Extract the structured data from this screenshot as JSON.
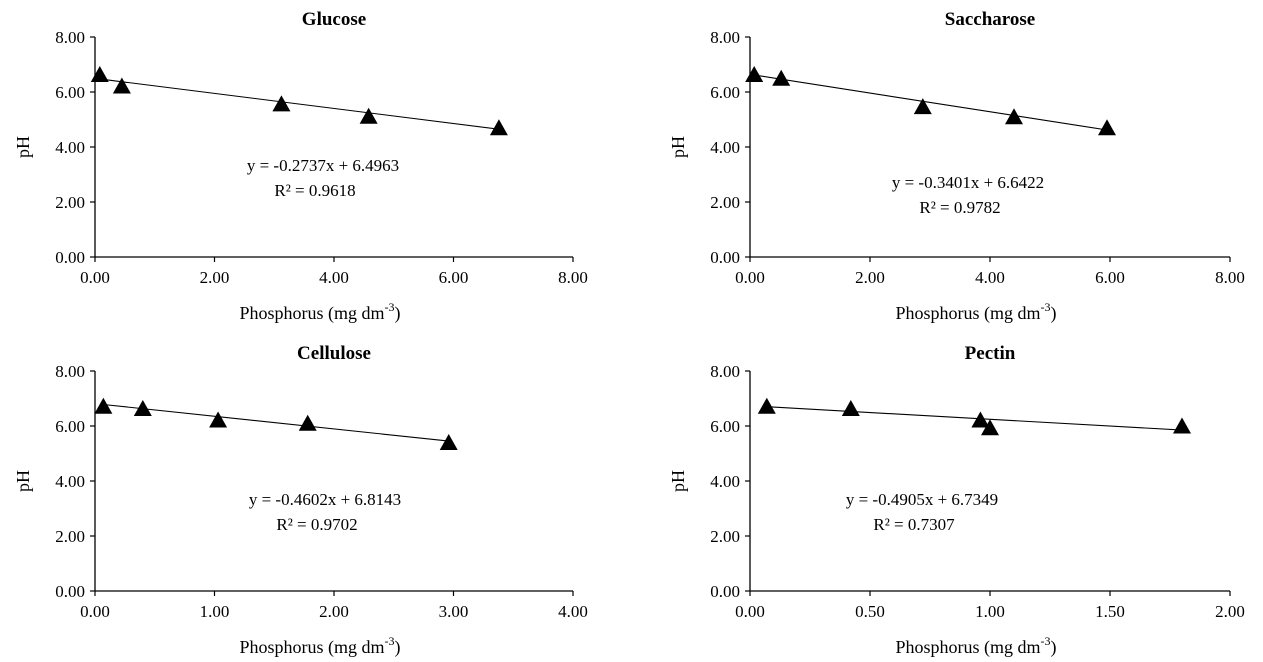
{
  "chart_data": [
    {
      "type": "scatter",
      "title": "Glucose",
      "xlabel": "Phosphorus (mg dm",
      "xlabel_sup": "-3",
      "xlabel_end": ")",
      "ylabel": "pH",
      "xlim": [
        0,
        8
      ],
      "ylim": [
        0,
        8
      ],
      "xticks": [
        "0.00",
        "2.00",
        "4.00",
        "6.00",
        "8.00"
      ],
      "yticks": [
        "0.00",
        "2.00",
        "4.00",
        "6.00",
        "8.00"
      ],
      "grid": false,
      "marker": "triangle",
      "color": "#000000",
      "points": [
        {
          "x": 0.08,
          "y": 6.62
        },
        {
          "x": 0.45,
          "y": 6.2
        },
        {
          "x": 3.12,
          "y": 5.55
        },
        {
          "x": 4.58,
          "y": 5.1
        },
        {
          "x": 6.76,
          "y": 4.68
        }
      ],
      "trendline": {
        "slope": -0.2737,
        "intercept": 6.4963
      },
      "equation": "y = -0.2737x + 6.4963",
      "r2": "R² = 0.9618"
    },
    {
      "type": "scatter",
      "title": "Saccharose",
      "xlabel": "Phosphorus (mg dm",
      "xlabel_sup": "-3",
      "xlabel_end": ")",
      "ylabel": "pH",
      "xlim": [
        0,
        8
      ],
      "ylim": [
        0,
        8
      ],
      "xticks": [
        "0.00",
        "2.00",
        "4.00",
        "6.00",
        "8.00"
      ],
      "yticks": [
        "0.00",
        "2.00",
        "4.00",
        "6.00",
        "8.00"
      ],
      "grid": false,
      "marker": "triangle",
      "color": "#000000",
      "points": [
        {
          "x": 0.07,
          "y": 6.62
        },
        {
          "x": 0.52,
          "y": 6.48
        },
        {
          "x": 2.88,
          "y": 5.45
        },
        {
          "x": 4.4,
          "y": 5.08
        },
        {
          "x": 5.95,
          "y": 4.68
        }
      ],
      "trendline": {
        "slope": -0.3401,
        "intercept": 6.6422
      },
      "equation": "y = -0.3401x + 6.6422",
      "r2": "R² = 0.9782"
    },
    {
      "type": "scatter",
      "title": "Cellulose",
      "xlabel": "Phosphorus (mg dm",
      "xlabel_sup": "-3",
      "xlabel_end": ")",
      "ylabel": "pH",
      "xlim": [
        0,
        4
      ],
      "ylim": [
        0,
        8
      ],
      "xticks": [
        "0.00",
        "1.00",
        "2.00",
        "3.00",
        "4.00"
      ],
      "yticks": [
        "0.00",
        "2.00",
        "4.00",
        "6.00",
        "8.00"
      ],
      "grid": false,
      "marker": "triangle",
      "color": "#000000",
      "points": [
        {
          "x": 0.07,
          "y": 6.7
        },
        {
          "x": 0.4,
          "y": 6.62
        },
        {
          "x": 1.03,
          "y": 6.2
        },
        {
          "x": 1.78,
          "y": 6.08
        },
        {
          "x": 2.96,
          "y": 5.38
        }
      ],
      "trendline": {
        "slope": -0.4602,
        "intercept": 6.8143
      },
      "equation": "y = -0.4602x + 6.8143",
      "r2": "R² = 0.9702"
    },
    {
      "type": "scatter",
      "title": "Pectin",
      "xlabel": "Phosphorus (mg dm",
      "xlabel_sup": "-3",
      "xlabel_end": ")",
      "ylabel": "pH",
      "xlim": [
        0,
        2
      ],
      "ylim": [
        0,
        8
      ],
      "xticks": [
        "0.00",
        "0.50",
        "1.00",
        "1.50",
        "2.00"
      ],
      "yticks": [
        "0.00",
        "2.00",
        "4.00",
        "6.00",
        "8.00"
      ],
      "grid": false,
      "marker": "triangle",
      "color": "#000000",
      "points": [
        {
          "x": 0.07,
          "y": 6.7
        },
        {
          "x": 0.42,
          "y": 6.62
        },
        {
          "x": 0.96,
          "y": 6.2
        },
        {
          "x": 1.0,
          "y": 5.92
        },
        {
          "x": 1.8,
          "y": 5.98
        }
      ],
      "trendline": {
        "slope": -0.4905,
        "intercept": 6.7349
      },
      "equation": "y = -0.4905x + 6.7349",
      "r2": "R² = 0.7307"
    }
  ]
}
